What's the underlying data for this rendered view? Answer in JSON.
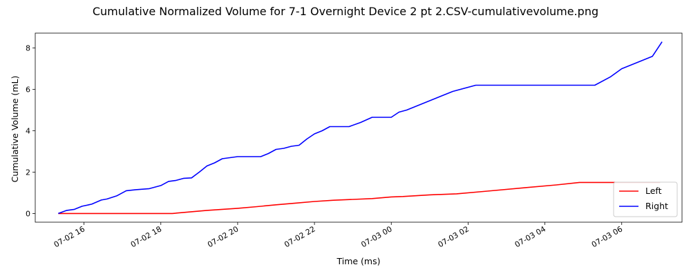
{
  "chart_data": {
    "type": "line",
    "title": "Cumulative Normalized Volume for 7-1 Overnight Device 2 pt 2.CSV-cumulativevolume.png",
    "xlabel": "Time (ms)",
    "ylabel": "Cumulative Volume (mL)",
    "x_tick_values": [
      16,
      18,
      20,
      22,
      24,
      26,
      28,
      30
    ],
    "x_tick_labels": [
      "07-02 16",
      "07-02 18",
      "07-02 20",
      "07-02 22",
      "07-03 00",
      "07-03 02",
      "07-03 04",
      "07-03 06"
    ],
    "y_tick_values": [
      0,
      2,
      4,
      6,
      8
    ],
    "y_tick_labels": [
      "0",
      "2",
      "4",
      "6",
      "8"
    ],
    "xlim": [
      14.73,
      31.57
    ],
    "ylim": [
      -0.42,
      8.72
    ],
    "legend_position": "lower-right",
    "grid": false,
    "series": [
      {
        "name": "Left",
        "color": "#ff0000",
        "x": [
          15.33,
          18.3,
          19.2,
          19.6,
          20.0,
          20.5,
          21.0,
          21.5,
          22.0,
          22.5,
          23.0,
          23.5,
          24.0,
          24.3,
          25.0,
          25.7,
          26.5,
          27.5,
          28.3,
          28.9,
          30.0,
          31.0
        ],
        "y": [
          0,
          0,
          0.15,
          0.2,
          0.25,
          0.33,
          0.42,
          0.5,
          0.58,
          0.64,
          0.68,
          0.72,
          0.8,
          0.82,
          0.9,
          0.95,
          1.08,
          1.25,
          1.38,
          1.5,
          1.5,
          1.5
        ]
      },
      {
        "name": "Right",
        "color": "#0000ff",
        "x": [
          15.33,
          15.55,
          15.75,
          15.95,
          16.2,
          16.45,
          16.6,
          16.85,
          17.1,
          17.35,
          17.7,
          18.0,
          18.2,
          18.4,
          18.6,
          18.8,
          19.0,
          19.2,
          19.4,
          19.6,
          19.8,
          20.0,
          20.3,
          20.6,
          20.8,
          21.0,
          21.2,
          21.4,
          21.6,
          21.8,
          22.0,
          22.2,
          22.4,
          22.6,
          22.9,
          23.2,
          23.5,
          23.8,
          24.0,
          24.2,
          24.4,
          24.8,
          25.2,
          25.6,
          26.2,
          26.6,
          27.0,
          27.6,
          28.1,
          28.5,
          28.9,
          29.3,
          29.7,
          30.0,
          30.4,
          30.8,
          31.05
        ],
        "y": [
          0,
          0.15,
          0.2,
          0.35,
          0.45,
          0.65,
          0.7,
          0.85,
          1.1,
          1.15,
          1.2,
          1.35,
          1.55,
          1.6,
          1.7,
          1.72,
          2.0,
          2.3,
          2.45,
          2.65,
          2.7,
          2.75,
          2.75,
          2.75,
          2.9,
          3.1,
          3.15,
          3.25,
          3.3,
          3.6,
          3.85,
          4.0,
          4.2,
          4.2,
          4.2,
          4.4,
          4.65,
          4.65,
          4.65,
          4.9,
          5.0,
          5.3,
          5.6,
          5.9,
          6.2,
          6.2,
          6.2,
          6.2,
          6.2,
          6.2,
          6.2,
          6.2,
          6.6,
          7.0,
          7.3,
          7.6,
          8.3
        ]
      }
    ]
  }
}
